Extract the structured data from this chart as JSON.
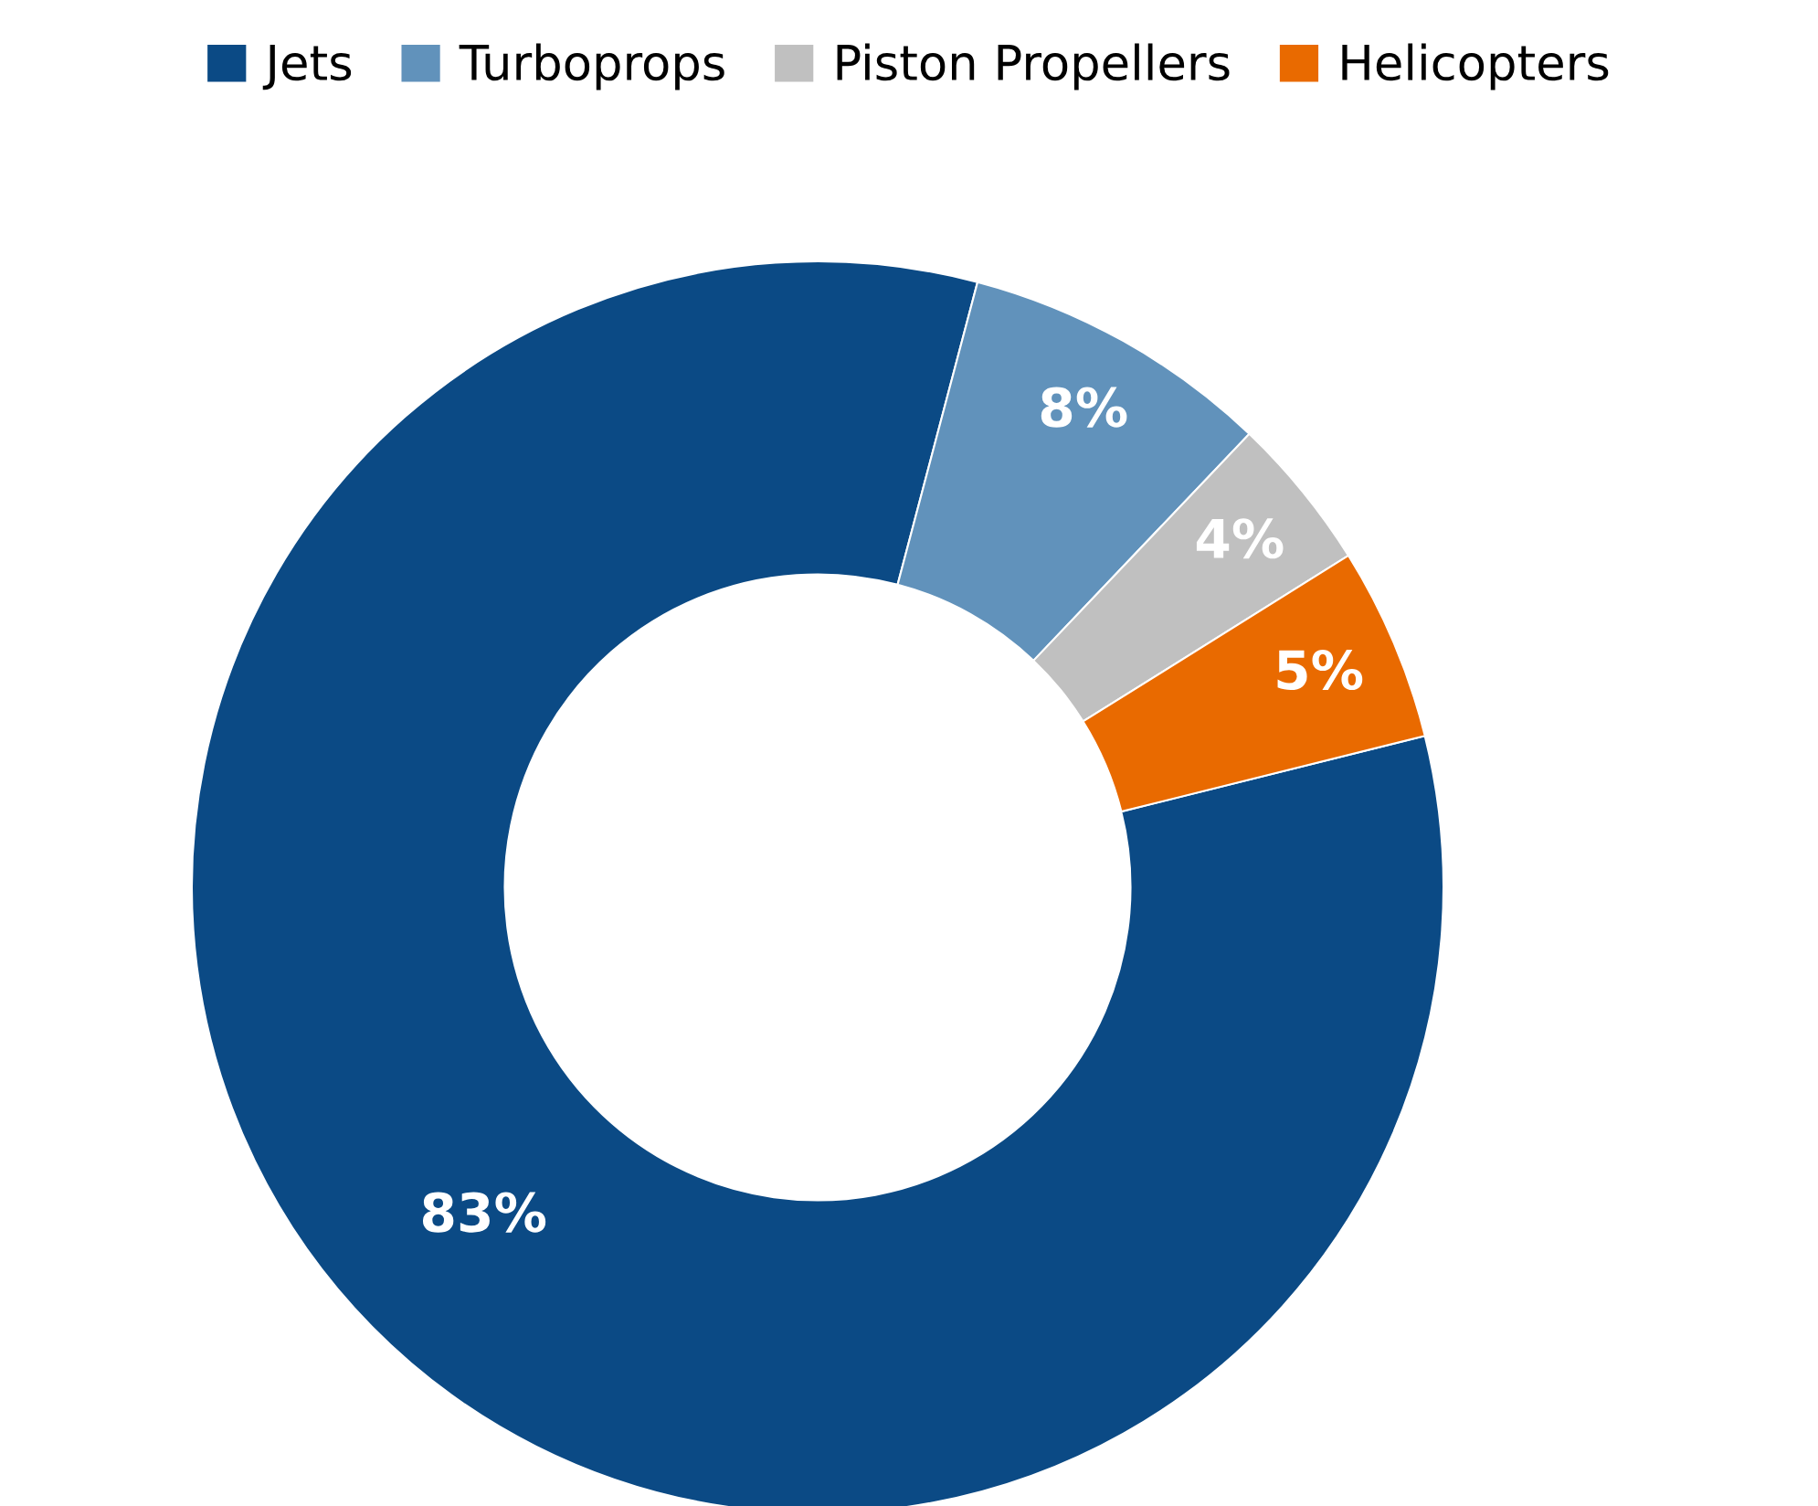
{
  "chart_data": {
    "type": "donut",
    "categories": [
      "Jets",
      "Turboprops",
      "Piston Propellers",
      "Helicopters"
    ],
    "values": [
      83,
      8,
      4,
      5
    ],
    "colors": [
      "#0b4a85",
      "#6192bb",
      "#c0c0c0",
      "#e96a00"
    ],
    "value_labels": [
      "83%",
      "8%",
      "4%",
      "5%"
    ],
    "legend": "top"
  }
}
